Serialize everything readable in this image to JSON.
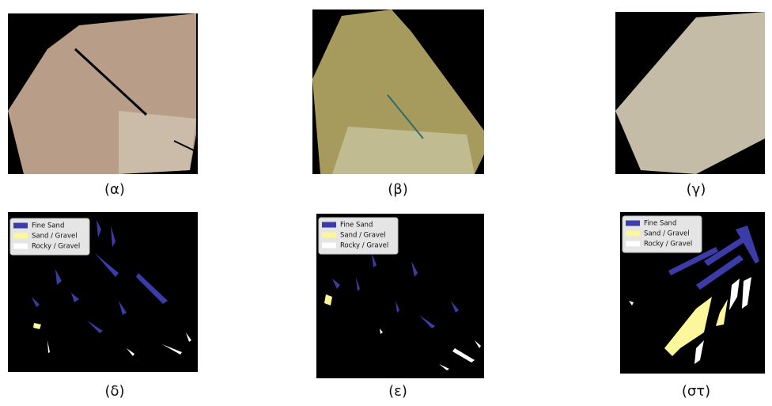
{
  "panels": [
    {
      "caption": "(α)"
    },
    {
      "caption": "(β)"
    },
    {
      "caption": "(γ)"
    },
    {
      "caption": "(δ)"
    },
    {
      "caption": "(ε)"
    },
    {
      "caption": "(στ)"
    }
  ],
  "legend": [
    {
      "label": "Fine Sand",
      "color": "#3c3ca8"
    },
    {
      "label": "Sand / Gravel",
      "color": "#fbf79a"
    },
    {
      "label": "Rocky / Gravel",
      "color": "#ffffff"
    }
  ]
}
